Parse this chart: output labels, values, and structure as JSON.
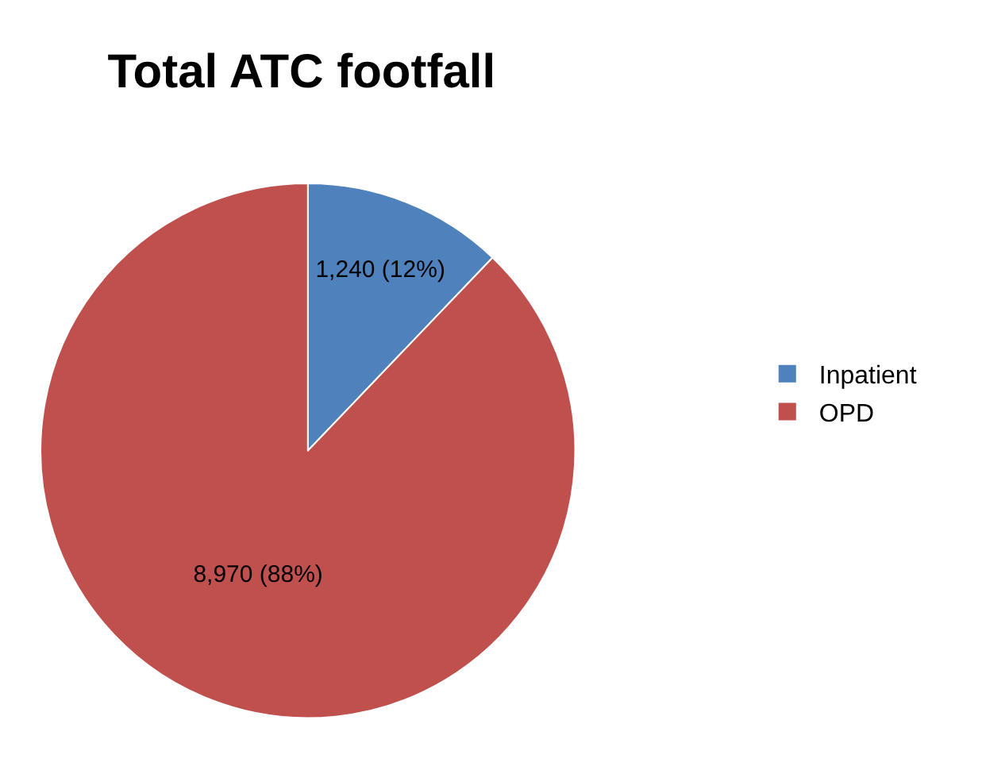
{
  "chart_data": {
    "type": "pie",
    "title": "Total ATC footfall",
    "categories": [
      "Inpatient",
      "OPD"
    ],
    "values": [
      1240,
      8970
    ],
    "value_labels": [
      "1,240 (12%)",
      "8,970 (88%)"
    ],
    "colors": [
      "#4f81bd",
      "#c0504d"
    ],
    "legend": "right"
  }
}
